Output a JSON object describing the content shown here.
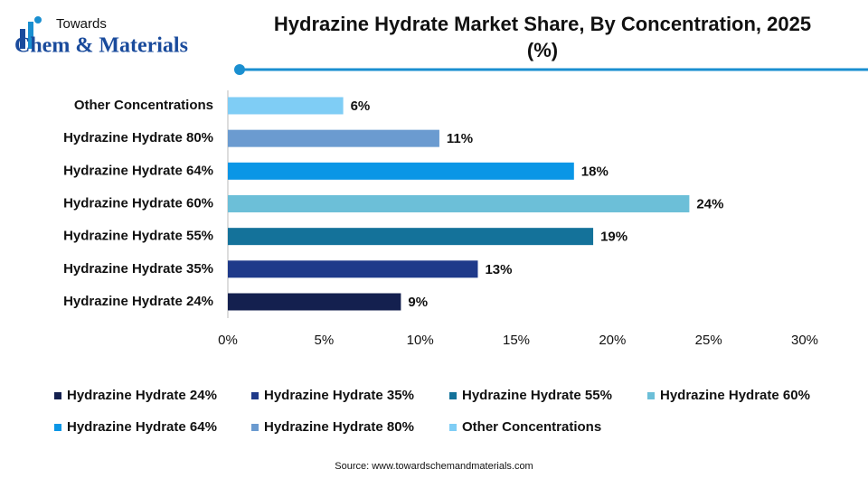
{
  "brand": {
    "top": "Towards",
    "name": "Chem & Materials"
  },
  "chart_data": {
    "type": "bar",
    "orientation": "horizontal",
    "title": "Hydrazine Hydrate Market Share, By Concentration, 2025 (%)",
    "categories": [
      "Hydrazine Hydrate 24%",
      "Hydrazine Hydrate 35%",
      "Hydrazine Hydrate 55%",
      "Hydrazine Hydrate 60%",
      "Hydrazine Hydrate 64%",
      "Hydrazine Hydrate 80%",
      "Other Concentrations"
    ],
    "values": [
      9,
      13,
      19,
      24,
      18,
      11,
      6
    ],
    "value_labels": [
      "9%",
      "13%",
      "19%",
      "24%",
      "18%",
      "11%",
      "6%"
    ],
    "colors": [
      "#14204f",
      "#1f3a8a",
      "#14729a",
      "#6cbfd8",
      "#0a96e6",
      "#6b9bd0",
      "#7fcdf5"
    ],
    "xlim": [
      0,
      30
    ],
    "xticks": [
      {
        "value": 0,
        "label": "0%"
      },
      {
        "value": 5,
        "label": "5%"
      },
      {
        "value": 10,
        "label": "10%"
      },
      {
        "value": 15,
        "label": "15%"
      },
      {
        "value": 20,
        "label": "20%"
      },
      {
        "value": 25,
        "label": "25%"
      },
      {
        "value": 30,
        "label": "30%"
      }
    ],
    "legend": "bottom",
    "source": "Source: www.towardschemandmaterials.com"
  }
}
